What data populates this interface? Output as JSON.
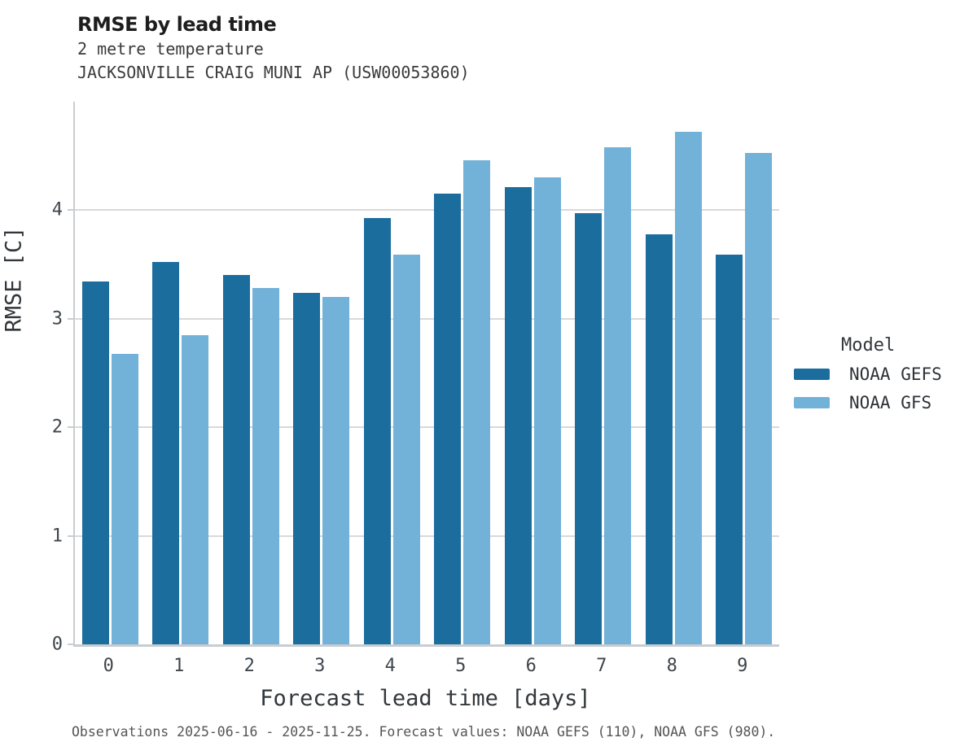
{
  "colors": {
    "noaa_gefs": "#1b6d9e",
    "noaa_gfs": "#72b1d8",
    "gridline": "#d9d9d9",
    "spine": "#c9cdd0",
    "title_text": "#1d1d1d",
    "tick_text": "#3e454b",
    "caption_text": "#555555"
  },
  "legend": {
    "title": "Model"
  },
  "chart_data": {
    "type": "bar",
    "grouping": "grouped",
    "title": "RMSE by lead time",
    "subtitle_variable": "2 metre temperature",
    "subtitle_station": "JACKSONVILLE CRAIG MUNI AP (USW00053860)",
    "xlabel": "Forecast lead time [days]",
    "ylabel": "RMSE [C]",
    "categories": [
      "0",
      "1",
      "2",
      "3",
      "4",
      "5",
      "6",
      "7",
      "8",
      "9"
    ],
    "series": [
      {
        "name": "NOAA GEFS",
        "color": "#1b6d9e",
        "values": [
          3.34,
          3.52,
          3.4,
          3.24,
          3.93,
          4.15,
          4.21,
          3.97,
          3.78,
          3.59
        ]
      },
      {
        "name": "NOAA GFS",
        "color": "#72b1d8",
        "values": [
          2.68,
          2.85,
          3.28,
          3.2,
          3.59,
          4.46,
          4.3,
          4.58,
          4.72,
          4.53
        ]
      }
    ],
    "ylim": [
      0,
      5
    ],
    "yticks": [
      0,
      1,
      2,
      3,
      4
    ],
    "grid": "horizontal-only",
    "legend_title": "Model",
    "legend_position": "right",
    "caption": "Observations 2025-06-16 - 2025-11-25. Forecast values: NOAA GEFS (110), NOAA GFS (980)."
  }
}
